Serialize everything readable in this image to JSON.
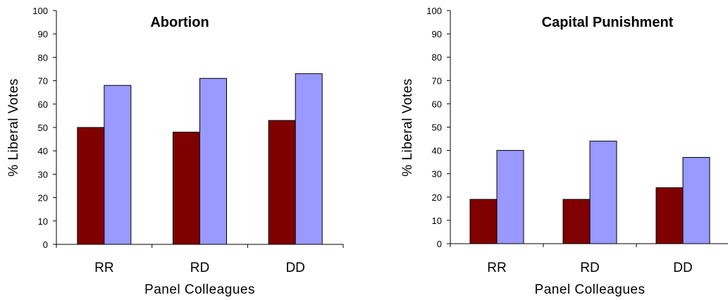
{
  "chart_data": [
    {
      "type": "bar",
      "title": "Abortion",
      "xlabel": "Panel Colleagues",
      "ylabel": "% Liberal Votes",
      "ylim": [
        0,
        100
      ],
      "yticks": [
        0,
        10,
        20,
        30,
        40,
        50,
        60,
        70,
        80,
        90,
        100
      ],
      "categories": [
        "RR",
        "RD",
        "DD"
      ],
      "grid": false,
      "legend": "none",
      "series": [
        {
          "values": [
            50,
            48,
            53
          ],
          "color": "#800000"
        },
        {
          "values": [
            68,
            71,
            73
          ],
          "color": "#9999FF"
        }
      ]
    },
    {
      "type": "bar",
      "title": "Capital Punishment",
      "xlabel": "Panel Colleagues",
      "ylabel": "% Liberal Votes",
      "ylim": [
        0,
        100
      ],
      "yticks": [
        0,
        10,
        20,
        30,
        40,
        50,
        60,
        70,
        80,
        90,
        100
      ],
      "categories": [
        "RR",
        "RD",
        "DD"
      ],
      "grid": false,
      "legend": "none",
      "series": [
        {
          "values": [
            19,
            19,
            24
          ],
          "color": "#800000"
        },
        {
          "values": [
            40,
            44,
            37
          ],
          "color": "#9999FF"
        }
      ]
    }
  ]
}
